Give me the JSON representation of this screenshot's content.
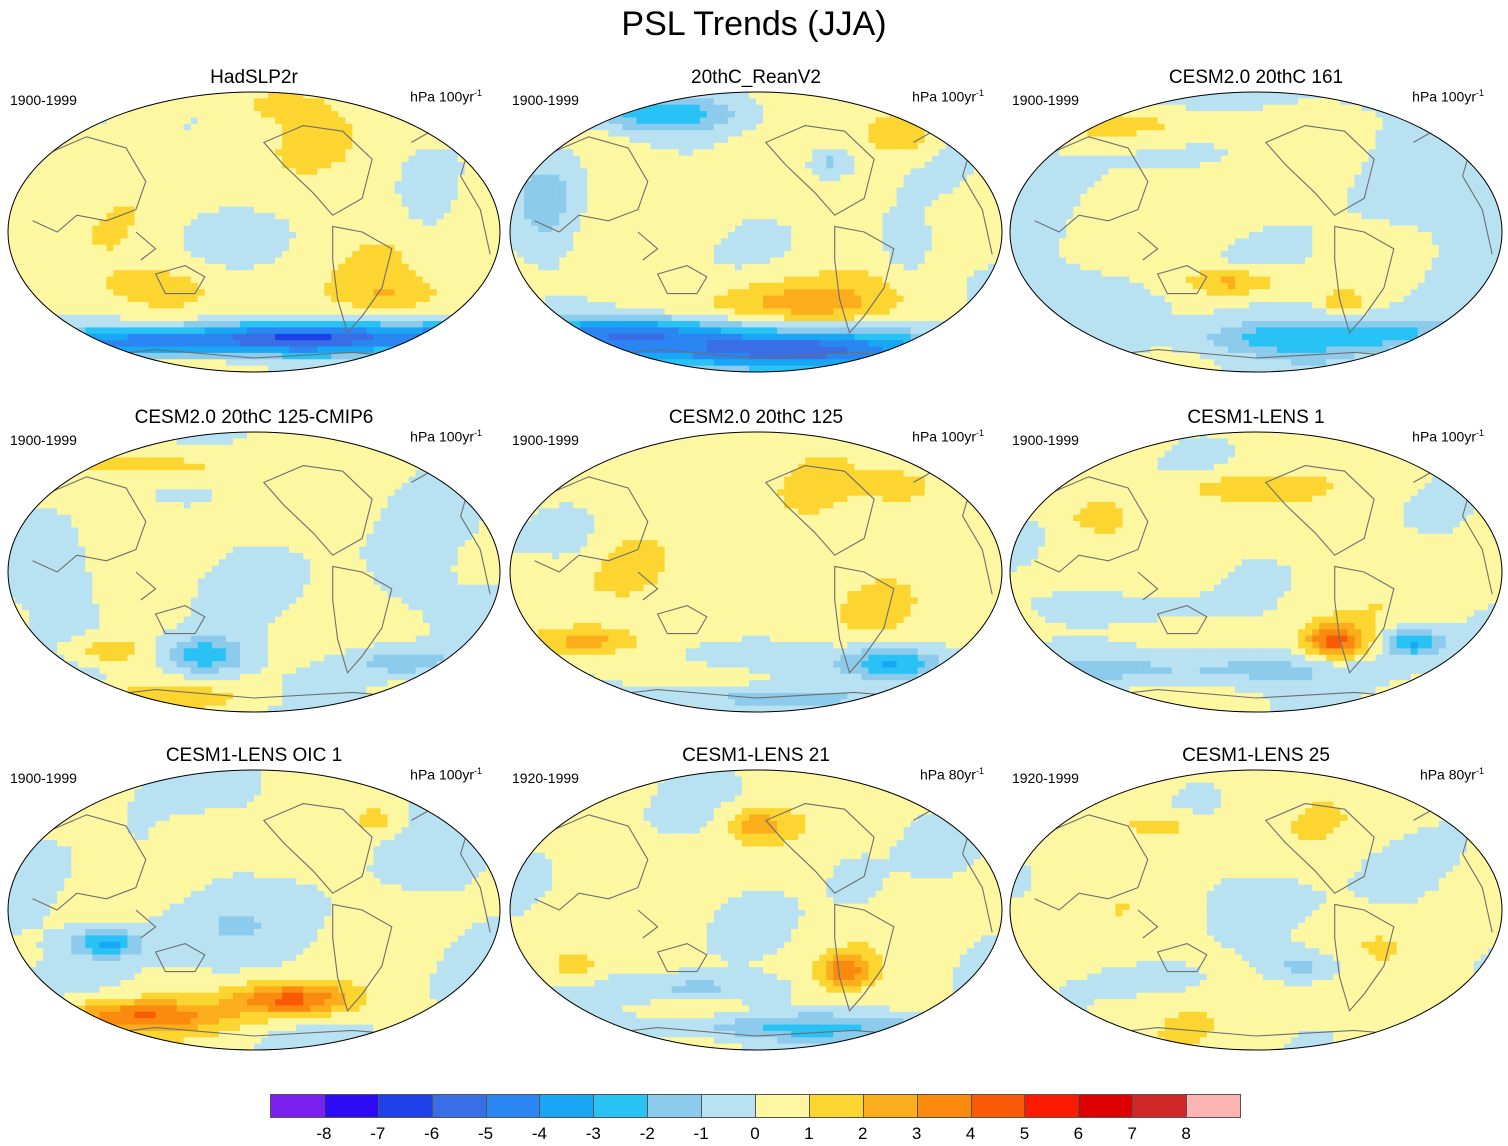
{
  "title": "PSL Trends (JJA)",
  "chart_data": {
    "type": "heatmap",
    "variable": "PSL",
    "season": "JJA",
    "colorbar": {
      "labels": [
        "-8",
        "-7",
        "-6",
        "-5",
        "-4",
        "-3",
        "-2",
        "-1",
        "0",
        "1",
        "2",
        "3",
        "4",
        "5",
        "6",
        "7",
        "8"
      ],
      "colors": [
        "#7b1ef0",
        "#2d0cf5",
        "#1e40e8",
        "#3a6ee6",
        "#2a86f2",
        "#18a6f5",
        "#28c2f5",
        "#8ccbec",
        "#b8e2f2",
        "#fdf7a2",
        "#fcd530",
        "#fcad1c",
        "#fa8a0e",
        "#fa5a06",
        "#fc1a00",
        "#dc0000",
        "#d02828",
        "#ffb4b4"
      ]
    },
    "panels": [
      {
        "title": "HadSLP2r",
        "period": "1900-1999",
        "units": "hPa 100yr",
        "units_exp": "-1",
        "pattern": "hadslp"
      },
      {
        "title": "20thC_ReanV2",
        "period": "1900-1999",
        "units": "hPa 100yr",
        "units_exp": "-1",
        "pattern": "reanv2"
      },
      {
        "title": "CESM2.0 20thC 161",
        "period": "1900-1999",
        "units": "hPa 100yr",
        "units_exp": "-1",
        "pattern": "cesm161"
      },
      {
        "title": "CESM2.0 20thC 125-CMIP6",
        "period": "1900-1999",
        "units": "hPa 100yr",
        "units_exp": "-1",
        "pattern": "cmip6"
      },
      {
        "title": "CESM2.0 20thC 125",
        "period": "1900-1999",
        "units": "hPa 100yr",
        "units_exp": "-1",
        "pattern": "c125"
      },
      {
        "title": "CESM1-LENS 1",
        "period": "1900-1999",
        "units": "hPa 100yr",
        "units_exp": "-1",
        "pattern": "lens1"
      },
      {
        "title": "CESM1-LENS OIC 1",
        "period": "1900-1999",
        "units": "hPa 100yr",
        "units_exp": "-1",
        "pattern": "oic1"
      },
      {
        "title": "CESM1-LENS 21",
        "period": "1920-1999",
        "units": "hPa 80yr",
        "units_exp": "-1",
        "pattern": "lens21"
      },
      {
        "title": "CESM1-LENS 25",
        "period": "1920-1999",
        "units": "hPa 80yr",
        "units_exp": "-1",
        "pattern": "lens25"
      }
    ]
  }
}
